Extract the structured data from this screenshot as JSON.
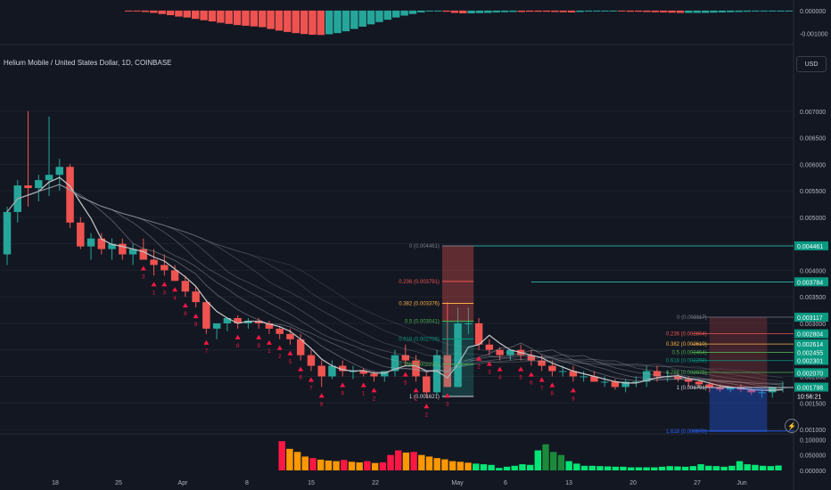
{
  "header": {
    "title": "Helium Mobile / United States Dollar, 1D, COINBASE",
    "currency_button": "USD"
  },
  "colors": {
    "background": "#131722",
    "up": "#26a69a",
    "down": "#ef5350",
    "bright_up": "#00e676",
    "signal_red": "#ff1744",
    "fib_green": "#089981",
    "level_line": "#26a69a",
    "gold": "#f7b046"
  },
  "chart_data": [
    {
      "type": "bar",
      "panel": "oscillator-histogram",
      "y_ticks": [
        "0.000000",
        "-0.001000"
      ],
      "ylim": [
        -0.0014,
        0.00015
      ],
      "values": [
        0,
        -3e-05,
        -6e-05,
        -0.0001,
        -0.00015,
        -0.0002,
        -0.00026,
        -0.0003,
        -0.00036,
        -0.00042,
        -0.00047,
        -0.00053,
        -0.00058,
        -0.00063,
        -0.00066,
        -0.00069,
        -0.00072,
        -0.0008,
        -0.00087,
        -0.00093,
        -0.00098,
        -0.00102,
        -0.00105,
        -0.00106,
        -0.00103,
        -0.00098,
        -0.0009,
        -0.0008,
        -0.0007,
        -0.0006,
        -0.0005,
        -0.0004,
        -0.0003,
        -0.00022,
        -0.00015,
        -8e-05,
        -3e-05,
        0,
        -5e-05,
        -0.0001,
        -0.00012,
        -0.00012,
        -0.00011,
        -0.0001,
        -8e-05,
        -7e-05,
        -6e-05,
        -6e-05,
        -5e-05,
        -5e-05,
        -5e-05,
        -6e-05,
        -7e-05,
        -8e-05,
        -6e-05,
        -4e-05,
        -3e-05,
        -3e-05,
        -3e-05,
        -4e-05,
        -5e-05,
        -5e-05,
        -6e-05,
        -7e-05,
        -8e-05,
        -9e-05,
        -0.0001,
        -0.0001,
        -0.0001,
        -0.0001,
        -9e-05,
        -8e-05,
        -7e-05,
        -6e-05,
        -5e-05,
        -4e-05,
        -3e-05,
        -2e-05,
        -1e-05,
        0
      ],
      "colors": [
        "down",
        "down",
        "down",
        "down",
        "down",
        "down",
        "down",
        "down",
        "down",
        "down",
        "down",
        "down",
        "down",
        "down",
        "down",
        "down",
        "down",
        "down",
        "down",
        "down",
        "down",
        "down",
        "down",
        "down",
        "up",
        "up",
        "up",
        "up",
        "up",
        "up",
        "up",
        "up",
        "up",
        "up",
        "up",
        "up",
        "up",
        "up",
        "down",
        "down",
        "down",
        "up",
        "up",
        "up",
        "up",
        "up",
        "up",
        "down",
        "down",
        "down",
        "down",
        "down",
        "down",
        "down",
        "up",
        "up",
        "up",
        "up",
        "up",
        "down",
        "down",
        "down",
        "down",
        "down",
        "down",
        "down",
        "down",
        "up",
        "up",
        "up",
        "up",
        "up",
        "up",
        "up",
        "up",
        "up",
        "up",
        "up",
        "up",
        "up"
      ]
    },
    {
      "type": "candlestick",
      "panel": "price",
      "symbol": "Helium Mobile / United States Dollar, 1D, COINBASE",
      "ylim": [
        0.00095,
        0.0075
      ],
      "y_ticks": [
        "0.007000",
        "0.006500",
        "0.006000",
        "0.005500",
        "0.005000",
        "0.004500",
        "0.004000",
        "0.003500",
        "0.003000",
        "0.002500",
        "0.002000",
        "0.001500",
        "0.001000"
      ],
      "x_labels": [
        "18",
        "25",
        "Apr",
        "8",
        "15",
        "22",
        "May",
        "6",
        "13",
        "20",
        "27",
        "Jun"
      ],
      "ohlc": [
        [
          0.0043,
          0.0052,
          0.0041,
          0.0051
        ],
        [
          0.0051,
          0.0057,
          0.0049,
          0.0056
        ],
        [
          0.0056,
          0.007,
          0.0052,
          0.00555
        ],
        [
          0.00555,
          0.0058,
          0.0053,
          0.0057
        ],
        [
          0.0057,
          0.0069,
          0.0054,
          0.0058
        ],
        [
          0.0058,
          0.0061,
          0.0055,
          0.00595
        ],
        [
          0.00595,
          0.006,
          0.0048,
          0.0049
        ],
        [
          0.0049,
          0.005,
          0.0044,
          0.00445
        ],
        [
          0.00445,
          0.0047,
          0.0042,
          0.0046
        ],
        [
          0.0046,
          0.0047,
          0.0043,
          0.0044
        ],
        [
          0.0044,
          0.0046,
          0.0042,
          0.0045
        ],
        [
          0.0045,
          0.0046,
          0.0042,
          0.0043
        ],
        [
          0.0043,
          0.0045,
          0.0041,
          0.0044
        ],
        [
          0.0044,
          0.0046,
          0.0042,
          0.0042
        ],
        [
          0.0042,
          0.0044,
          0.0039,
          0.0041
        ],
        [
          0.0041,
          0.0043,
          0.0039,
          0.004
        ],
        [
          0.004,
          0.0041,
          0.0038,
          0.0038
        ],
        [
          0.0038,
          0.0039,
          0.0035,
          0.0036
        ],
        [
          0.0036,
          0.0037,
          0.0033,
          0.0034
        ],
        [
          0.0034,
          0.00345,
          0.0028,
          0.0029
        ],
        [
          0.0029,
          0.003,
          0.0027,
          0.003
        ],
        [
          0.003,
          0.0031,
          0.00285,
          0.0031
        ],
        [
          0.0031,
          0.00315,
          0.0029,
          0.003
        ],
        [
          0.003,
          0.0031,
          0.0029,
          0.00305
        ],
        [
          0.00305,
          0.0031,
          0.0029,
          0.003
        ],
        [
          0.003,
          0.00305,
          0.0028,
          0.0029
        ],
        [
          0.0029,
          0.00295,
          0.0027,
          0.0028
        ],
        [
          0.0028,
          0.0029,
          0.0026,
          0.0027
        ],
        [
          0.0027,
          0.0028,
          0.0023,
          0.0024
        ],
        [
          0.0024,
          0.0025,
          0.0021,
          0.0022
        ],
        [
          0.0022,
          0.0023,
          0.0018,
          0.002
        ],
        [
          0.002,
          0.0023,
          0.00195,
          0.0022
        ],
        [
          0.0022,
          0.0023,
          0.002,
          0.0021
        ],
        [
          0.0021,
          0.0022,
          0.00195,
          0.0021
        ],
        [
          0.0021,
          0.00215,
          0.002,
          0.00205
        ],
        [
          0.00205,
          0.0021,
          0.0019,
          0.002
        ],
        [
          0.002,
          0.0021,
          0.0019,
          0.0021
        ],
        [
          0.0021,
          0.0025,
          0.002,
          0.0024
        ],
        [
          0.0024,
          0.0026,
          0.0022,
          0.0023
        ],
        [
          0.0023,
          0.0024,
          0.0019,
          0.002
        ],
        [
          0.002,
          0.0021,
          0.0016,
          0.0017
        ],
        [
          0.0017,
          0.0025,
          0.00165,
          0.0024
        ],
        [
          0.0024,
          0.0034,
          0.0018,
          0.0018
        ],
        [
          0.0018,
          0.0033,
          0.0018,
          0.003
        ],
        [
          0.003,
          0.0033,
          0.0028,
          0.003
        ],
        [
          0.003,
          0.0031,
          0.0025,
          0.0026
        ],
        [
          0.0026,
          0.0027,
          0.0024,
          0.0025
        ],
        [
          0.0025,
          0.00255,
          0.0023,
          0.0024
        ],
        [
          0.0024,
          0.0025,
          0.0023,
          0.0025
        ],
        [
          0.0025,
          0.0026,
          0.0023,
          0.0024
        ],
        [
          0.0024,
          0.0025,
          0.0022,
          0.0023
        ],
        [
          0.0023,
          0.0024,
          0.0021,
          0.0022
        ],
        [
          0.0022,
          0.0023,
          0.002,
          0.0021
        ],
        [
          0.0021,
          0.0022,
          0.002,
          0.0021
        ],
        [
          0.0021,
          0.0022,
          0.0019,
          0.002
        ],
        [
          0.002,
          0.0021,
          0.0019,
          0.002
        ],
        [
          0.002,
          0.0021,
          0.0019,
          0.0019
        ],
        [
          0.0019,
          0.002,
          0.0018,
          0.0019
        ],
        [
          0.0019,
          0.00195,
          0.00175,
          0.0018
        ],
        [
          0.0018,
          0.00195,
          0.0017,
          0.0019
        ],
        [
          0.0019,
          0.002,
          0.0018,
          0.0019
        ],
        [
          0.0019,
          0.0022,
          0.0018,
          0.0021
        ],
        [
          0.0021,
          0.0022,
          0.0019,
          0.002
        ],
        [
          0.002,
          0.0021,
          0.0019,
          0.002
        ],
        [
          0.002,
          0.00205,
          0.0019,
          0.00195
        ],
        [
          0.00195,
          0.002,
          0.0018,
          0.0019
        ],
        [
          0.0019,
          0.00195,
          0.0018,
          0.00185
        ],
        [
          0.00185,
          0.0019,
          0.0017,
          0.0018
        ],
        [
          0.0018,
          0.00185,
          0.0017,
          0.00175
        ],
        [
          0.00175,
          0.0018,
          0.0017,
          0.0018
        ],
        [
          0.0018,
          0.00185,
          0.0017,
          0.00175
        ],
        [
          0.00175,
          0.0018,
          0.00165,
          0.0017
        ],
        [
          0.0017,
          0.00175,
          0.0016,
          0.0017
        ],
        [
          0.0017,
          0.0018,
          0.0016,
          0.0018
        ],
        [
          0.0018,
          0.0019,
          0.0017,
          0.0018
        ]
      ],
      "horizontal_levels": [
        0.00446,
        0.00378
      ],
      "fib_left": {
        "labels": [
          "0 (0.004461)",
          "0.236 (0.003791)",
          "0.382 (0.003376)",
          "0.5 (0.003041)",
          "0.618 (0.002706)",
          "0.786 (0.002229)",
          "1 (0.001621)"
        ],
        "levels": [
          0.004461,
          0.003791,
          0.003376,
          0.003041,
          0.002706,
          0.002229,
          0.001621
        ],
        "colors": [
          "#787b86",
          "#ef5350",
          "#f7b046",
          "#4caf50",
          "#089981",
          "#4caf50",
          "#d1d4dc"
        ]
      },
      "fib_right": {
        "labels": [
          "0 (0.003117)",
          "0.236 (0.002804)",
          "0.382 (0.002610)",
          "0.5 (0.002454)",
          "0.618 (0.002298)",
          "0.786 (0.002075)",
          "1 (0.001791)",
          "1.618 (0.000970)"
        ],
        "levels": [
          0.003117,
          0.002804,
          0.00261,
          0.002454,
          0.002298,
          0.002075,
          0.001791,
          0.00097
        ],
        "colors": [
          "#787b86",
          "#ef5350",
          "#f7b046",
          "#4caf50",
          "#089981",
          "#4caf50",
          "#d1d4dc",
          "#2962ff"
        ]
      },
      "price_labels": [
        {
          "text": "0.004461",
          "value": 0.004461,
          "color": "#089981"
        },
        {
          "text": "0.003784",
          "value": 0.003784,
          "color": "#089981"
        },
        {
          "text": "0.003117",
          "value": 0.003117,
          "color": "#089981"
        },
        {
          "text": "0.002804",
          "value": 0.002804,
          "color": "#089981"
        },
        {
          "text": "0.002614",
          "value": 0.002614,
          "color": "#089981"
        },
        {
          "text": "0.002455",
          "value": 0.002455,
          "color": "#089981"
        },
        {
          "text": "0.002301",
          "value": 0.002301,
          "color": "#089981"
        },
        {
          "text": "0.002070",
          "value": 0.00207,
          "color": "#089981"
        },
        {
          "text": "0.001798",
          "value": 0.001798,
          "color": "#089981"
        }
      ],
      "countdown": "10:56:21",
      "sequence_numbers": [
        "3",
        "1",
        "3",
        "4",
        "8",
        "9",
        "7",
        "8",
        "9",
        "1",
        "2",
        "5",
        "6",
        "7",
        "8",
        "9",
        "1",
        "2",
        "5",
        "1",
        "2",
        "3",
        "2",
        "3",
        "4",
        "5",
        "6",
        "7",
        "8",
        "9"
      ]
    },
    {
      "type": "bar",
      "panel": "volume",
      "y_ticks": [
        "0.100000",
        "0.050000",
        "0.000000"
      ],
      "ylim": [
        0,
        0.11
      ],
      "values": [
        0.0,
        0.0,
        0.0,
        0.0,
        0.0,
        0.0,
        0.0,
        0.0,
        0.0,
        0.0,
        0.0,
        0.0,
        0.0,
        0.0,
        0.0,
        0.0,
        0.0,
        0.0,
        0.0,
        0.0,
        0.0,
        0.0,
        0.0,
        0.0,
        0.0,
        0.0,
        0.0,
        0.0,
        0.0,
        0.0,
        0.0,
        0.0,
        0.0,
        0.0,
        0.0,
        0.095,
        0.07,
        0.06,
        0.045,
        0.04,
        0.035,
        0.032,
        0.03,
        0.034,
        0.028,
        0.026,
        0.03,
        0.024,
        0.026,
        0.05,
        0.065,
        0.058,
        0.06,
        0.05,
        0.045,
        0.04,
        0.036,
        0.03,
        0.028,
        0.025,
        0.022,
        0.02,
        0.018,
        0.008,
        0.012,
        0.015,
        0.02,
        0.018,
        0.065,
        0.085,
        0.06,
        0.05,
        0.03,
        0.022,
        0.015,
        0.015,
        0.014,
        0.013,
        0.012,
        0.012,
        0.01,
        0.01,
        0.01,
        0.01,
        0.012,
        0.014,
        0.013,
        0.012,
        0.014,
        0.02,
        0.015,
        0.014,
        0.012,
        0.015,
        0.03,
        0.02,
        0.018,
        0.015,
        0.014,
        0.016
      ],
      "colors": [
        "down",
        "down",
        "down",
        "down",
        "down",
        "down",
        "down",
        "down",
        "down",
        "down",
        "down",
        "down",
        "down",
        "down",
        "down",
        "down",
        "down",
        "down",
        "down",
        "down",
        "down",
        "down",
        "down",
        "down",
        "down",
        "down",
        "down",
        "down",
        "down",
        "down",
        "down",
        "down",
        "down",
        "down",
        "down",
        "signal_red",
        "orange",
        "orange",
        "orange",
        "signal_red",
        "orange",
        "orange",
        "orange",
        "signal_red",
        "orange",
        "orange",
        "signal_red",
        "orange",
        "signal_red",
        "signal_red",
        "signal_red",
        "orange",
        "signal_red",
        "orange",
        "orange",
        "orange",
        "orange",
        "orange",
        "orange",
        "orange",
        "bright_up",
        "bright_up",
        "bright_up",
        "bright_up",
        "bright_up",
        "bright_up",
        "bright_up",
        "bright_up",
        "bright_up",
        "dark_green",
        "dark_green",
        "dark_green",
        "bright_up",
        "bright_up",
        "bright_up",
        "bright_up",
        "bright_up",
        "bright_up",
        "bright_up",
        "bright_up",
        "bright_up",
        "bright_up",
        "bright_up",
        "bright_up",
        "bright_up",
        "bright_up",
        "bright_up",
        "bright_up",
        "bright_up",
        "bright_up",
        "bright_up",
        "bright_up",
        "bright_up",
        "bright_up",
        "bright_up",
        "bright_up",
        "bright_up",
        "bright_up",
        "bright_up",
        "bright_up"
      ]
    }
  ]
}
